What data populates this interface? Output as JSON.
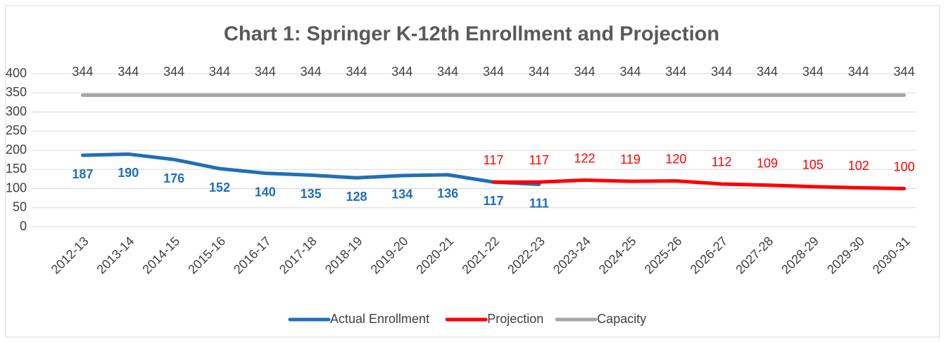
{
  "chart_data": {
    "type": "line",
    "title": "Chart 1: Springer K-12th Enrollment and Projection",
    "categories": [
      "2012-13",
      "2013-14",
      "2014-15",
      "2015-16",
      "2016-17",
      "2017-18",
      "2018-19",
      "2019-20",
      "2020-21",
      "2021-22",
      "2022-23",
      "2023-24",
      "2024-25",
      "2025-26",
      "2026-27",
      "2027-28",
      "2028-29",
      "2029-30",
      "2030-31"
    ],
    "series": [
      {
        "name": "Actual Enrollment",
        "color": "#1f6fb8",
        "label_position": "below",
        "values": [
          187,
          190,
          176,
          152,
          140,
          135,
          128,
          134,
          136,
          117,
          111,
          null,
          null,
          null,
          null,
          null,
          null,
          null,
          null
        ]
      },
      {
        "name": "Projection",
        "color": "#ff0000",
        "label_position": "above",
        "values": [
          null,
          null,
          null,
          null,
          null,
          null,
          null,
          null,
          null,
          117,
          117,
          122,
          119,
          120,
          112,
          109,
          105,
          102,
          100
        ]
      },
      {
        "name": "Capacity",
        "color": "#a6a6a6",
        "label_position": "top",
        "values": [
          344,
          344,
          344,
          344,
          344,
          344,
          344,
          344,
          344,
          344,
          344,
          344,
          344,
          344,
          344,
          344,
          344,
          344,
          344
        ]
      }
    ],
    "ylim": [
      0,
      400
    ],
    "yticks": [
      0,
      50,
      100,
      150,
      200,
      250,
      300,
      350,
      400
    ],
    "grid": true,
    "legend": "bottom"
  }
}
